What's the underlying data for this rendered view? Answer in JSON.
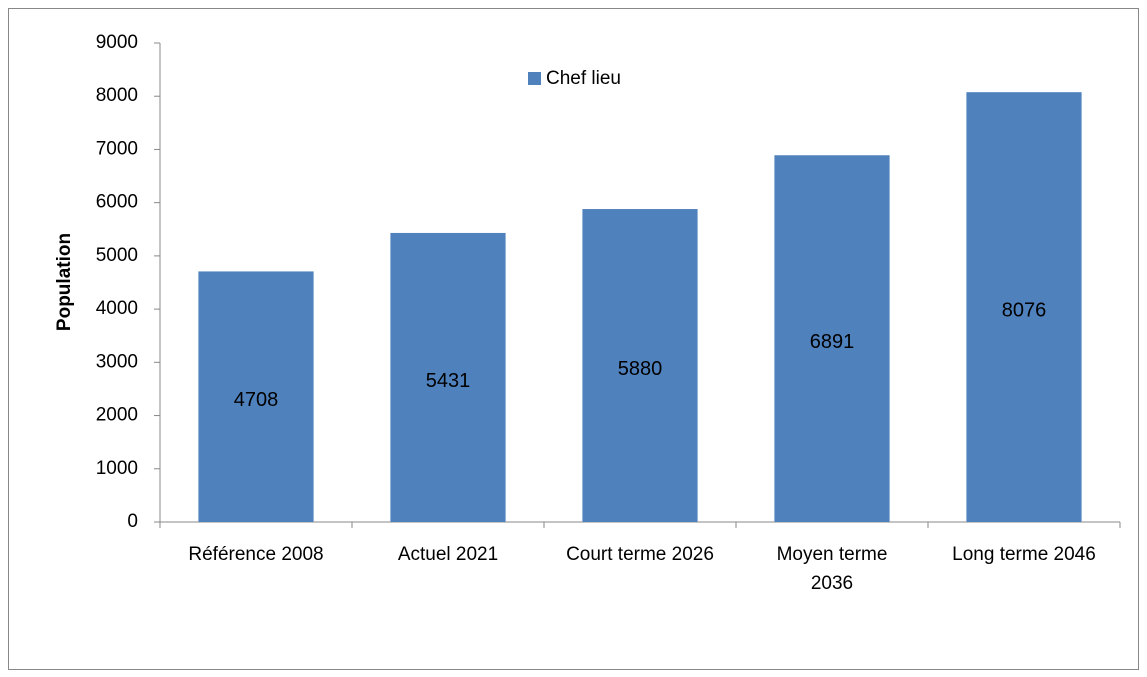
{
  "chart_data": {
    "type": "bar",
    "y_axis_label": "Population",
    "categories": [
      "Référence 2008",
      "Actuel 2021",
      "Court terme 2026",
      "Moyen terme\n2036",
      "Long terme 2046"
    ],
    "series": [
      {
        "name": "Chef lieu",
        "color": "#4f81bd",
        "values": [
          4708,
          5431,
          5880,
          6891,
          8076
        ]
      }
    ],
    "ylim": [
      0,
      9000
    ],
    "yticks": [
      0,
      1000,
      2000,
      3000,
      4000,
      5000,
      6000,
      7000,
      8000,
      9000
    ],
    "grid": false,
    "legend": "top"
  }
}
